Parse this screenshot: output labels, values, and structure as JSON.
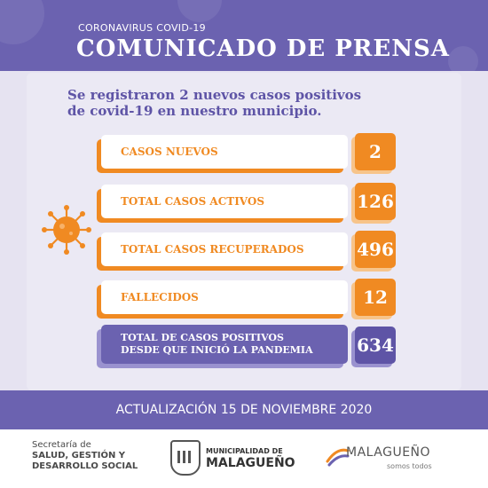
{
  "header": {
    "subtitle": "CORONAVIRUS COVID-19",
    "title": "COMUNICADO DE PRENSA"
  },
  "intro": {
    "line1": "Se registraron 2 nuevos casos positivos",
    "line2": "de covid-19 en nuestro municipio."
  },
  "stats": [
    {
      "label": "CASOS NUEVOS",
      "value": "2"
    },
    {
      "label": "TOTAL CASOS ACTIVOS",
      "value": "126"
    },
    {
      "label": "TOTAL CASOS RECUPERADOS",
      "value": "496"
    },
    {
      "label": "FALLECIDOS",
      "value": "12"
    }
  ],
  "total": {
    "line1": "TOTAL DE CASOS POSITIVOS",
    "line2": "DESDE QUE INICIÓ LA PANDEMIA",
    "value": "634"
  },
  "update": "ACTUALIZACIÓN 15 DE NOVIEMBRE 2020",
  "footer": {
    "secretaria_line1": "Secretaría de",
    "secretaria_line2": "SALUD, GESTIÓN Y",
    "secretaria_line3": "DESARROLLO SOCIAL",
    "muni_top": "MUNICIPALIDAD DE",
    "muni_name": "MALAGUEÑO",
    "brand_name": "MALAGUEÑO",
    "brand_tag": "somos todos"
  },
  "colors": {
    "purple": "#6b62b0",
    "orange": "#f08a22",
    "background": "#e6e3f1"
  },
  "icons": [
    "virus-icon",
    "shield-icon",
    "swoosh-icon"
  ]
}
